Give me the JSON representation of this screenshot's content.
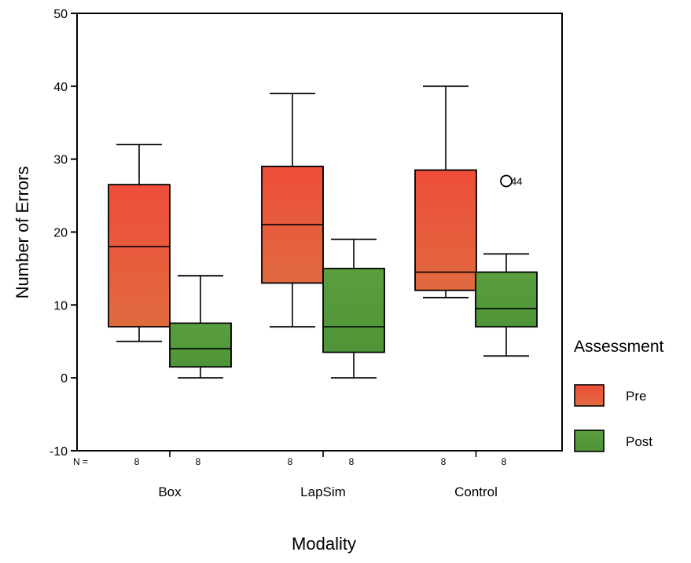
{
  "chart_data": {
    "type": "box",
    "title": "",
    "xlabel": "Modality",
    "ylabel": "Number of Errors",
    "ylim": [
      -10,
      50
    ],
    "yticks": [
      "-10",
      "0",
      "10",
      "20",
      "30",
      "40",
      "50"
    ],
    "n_prefix": "N =",
    "categories": [
      "Box",
      "LapSim",
      "Control"
    ],
    "legend": {
      "title": "Assessment",
      "position": "right",
      "entries": [
        "Pre",
        "Post"
      ]
    },
    "colors": {
      "Pre": "#e8503c",
      "Post": "#5a9e3c"
    },
    "series": [
      {
        "name": "Pre",
        "n": [
          "8",
          "8",
          "8"
        ],
        "boxes": [
          {
            "min": 5,
            "q1": 7,
            "median": 18,
            "q3": 26.5,
            "max": 32
          },
          {
            "min": 7,
            "q1": 13,
            "median": 21,
            "q3": 29,
            "max": 39
          },
          {
            "min": 11,
            "q1": 12,
            "median": 14.5,
            "q3": 28.5,
            "max": 40
          }
        ]
      },
      {
        "name": "Post",
        "n": [
          "8",
          "8",
          "8"
        ],
        "boxes": [
          {
            "min": 0,
            "q1": 1.5,
            "median": 4,
            "q3": 7.5,
            "max": 14
          },
          {
            "min": 0,
            "q1": 3.5,
            "median": 7,
            "q3": 15,
            "max": 19
          },
          {
            "min": 3,
            "q1": 7,
            "median": 9.5,
            "q3": 14.5,
            "max": 17
          }
        ]
      }
    ],
    "outliers": [
      {
        "series": "Post",
        "category": "Control",
        "value": 27,
        "label": "44"
      }
    ]
  }
}
